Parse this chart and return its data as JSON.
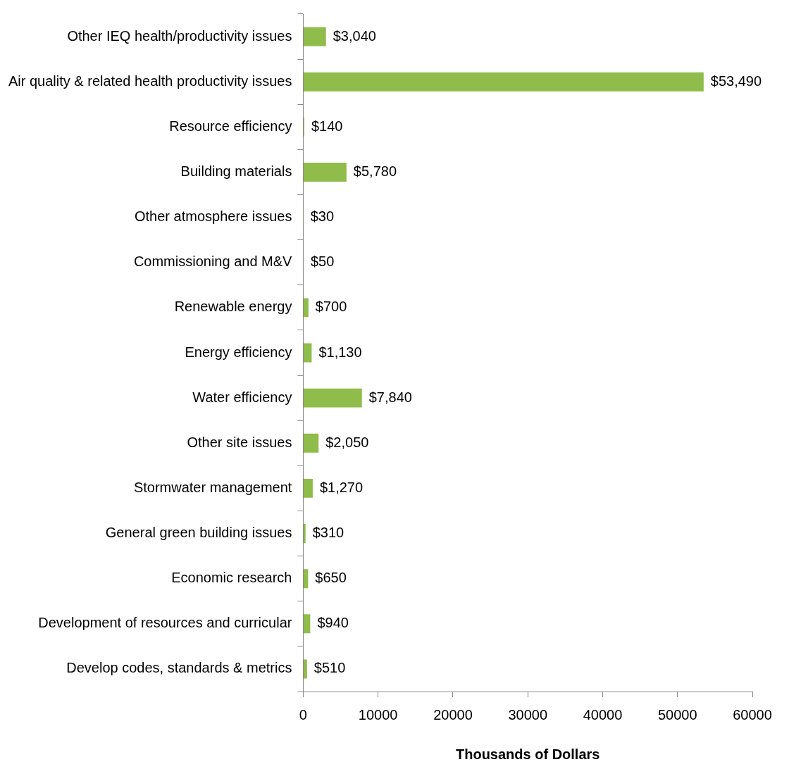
{
  "chart_data": {
    "type": "bar",
    "orientation": "horizontal",
    "xlabel": "Thousands of Dollars",
    "categories": [
      "Other IEQ health/productivity issues",
      "Air quality & related health productivity issues",
      "Resource efficiency",
      "Building materials",
      "Other atmosphere issues",
      "Commissioning and M&V",
      "Renewable energy",
      "Energy efficiency",
      "Water efficiency",
      "Other site issues",
      "Stormwater management",
      "General green building issues",
      "Economic research",
      "Development of resources and curricular",
      "Develop codes, standards & metrics"
    ],
    "values": [
      3040,
      53490,
      140,
      5780,
      30,
      50,
      700,
      1130,
      7840,
      2050,
      1270,
      310,
      650,
      940,
      510
    ],
    "value_labels": [
      "$3,040",
      "$53,490",
      "$140",
      "$5,780",
      "$30",
      "$50",
      "$700",
      "$1,130",
      "$7,840",
      "$2,050",
      "$1,270",
      "$310",
      "$650",
      "$940",
      "$510"
    ],
    "color": "#8fbc4a",
    "xlim": [
      0,
      60000
    ],
    "xticks": [
      0,
      10000,
      20000,
      30000,
      40000,
      50000,
      60000
    ]
  }
}
